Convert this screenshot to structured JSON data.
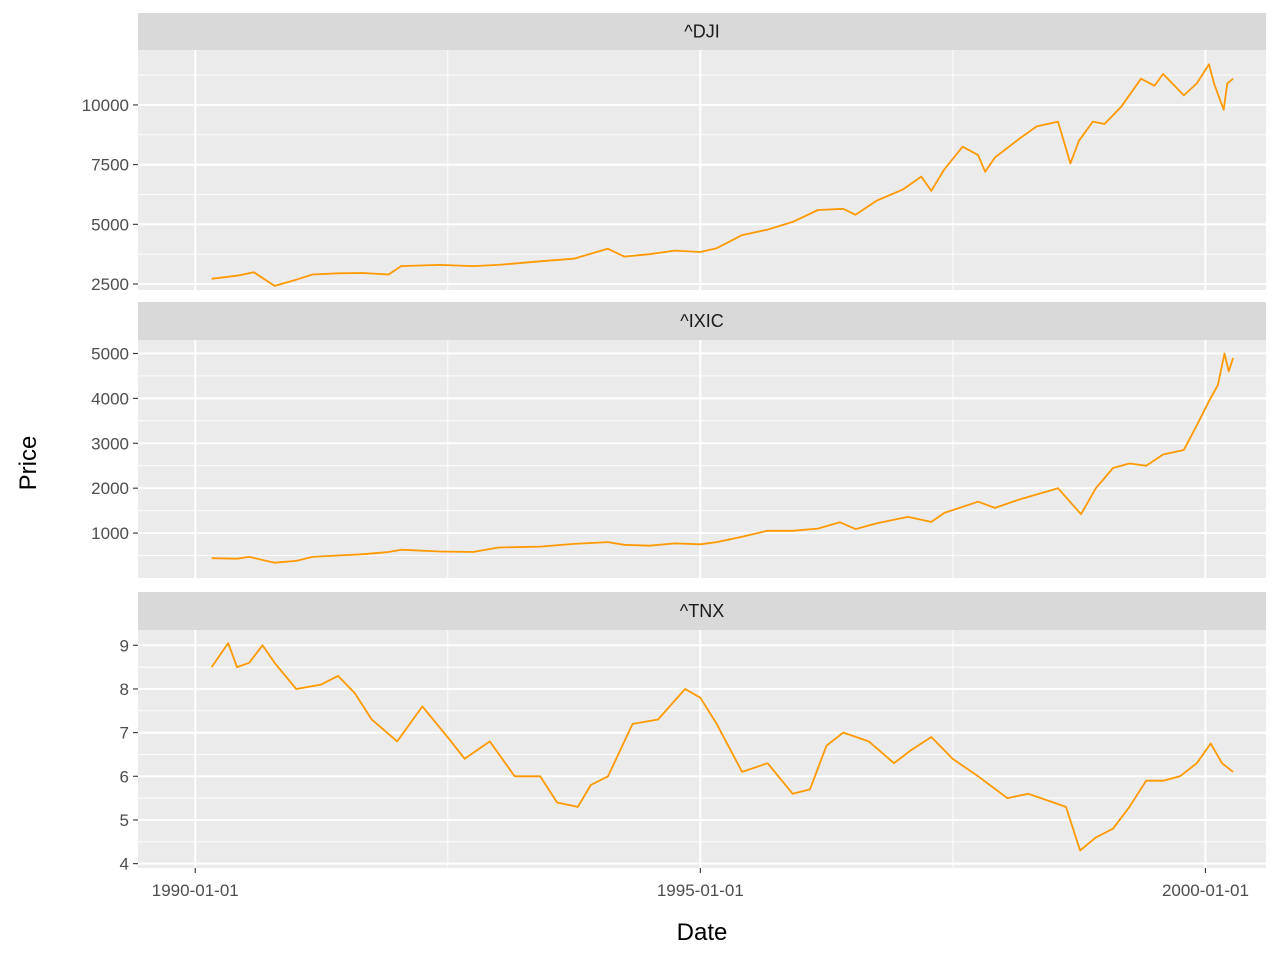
{
  "chart_data": {
    "type": "line",
    "facets": "vertical, free y scale, shared x axis",
    "xlabel": "Date",
    "ylabel": "Price",
    "x_axis": {
      "type": "date",
      "range": [
        "1989-06-08",
        "2000-08-07"
      ],
      "ticks": [
        "1990-01-01",
        "1995-01-01",
        "2000-01-01"
      ]
    },
    "grid": true,
    "line_color": "#FF9900",
    "panel_background": "#EBEBEB",
    "strip_background": "#D9D9D9",
    "panels": [
      {
        "title": "^DJI",
        "ylim": [
          2250,
          12300
        ],
        "yticks": [
          2500,
          5000,
          7500,
          10000
        ],
        "series": {
          "x": [
            "1990-03-01",
            "1990-06-01",
            "1990-08-01",
            "1990-10-15",
            "1991-01-01",
            "1991-03-01",
            "1991-06-01",
            "1991-09-01",
            "1991-12-01",
            "1992-01-15",
            "1992-06-01",
            "1992-10-01",
            "1993-01-01",
            "1993-06-01",
            "1993-10-01",
            "1994-01-31",
            "1994-04-01",
            "1994-07-01",
            "1994-10-01",
            "1995-01-01",
            "1995-03-01",
            "1995-06-01",
            "1995-09-01",
            "1995-12-01",
            "1996-03-01",
            "1996-06-01",
            "1996-07-15",
            "1996-10-01",
            "1997-01-01",
            "1997-03-10",
            "1997-04-15",
            "1997-06-01",
            "1997-08-06",
            "1997-10-01",
            "1997-10-27",
            "1997-12-01",
            "1998-03-01",
            "1998-05-01",
            "1998-07-17",
            "1998-08-31",
            "1998-10-01",
            "1998-11-20",
            "1999-01-01",
            "1999-03-01",
            "1999-05-13",
            "1999-07-01",
            "1999-08-01",
            "1999-10-15",
            "1999-12-01",
            "2000-01-14",
            "2000-02-01",
            "2000-03-07",
            "2000-03-20",
            "2000-04-10"
          ],
          "y": [
            2720,
            2850,
            2990,
            2420,
            2680,
            2900,
            2950,
            2960,
            2900,
            3250,
            3300,
            3250,
            3300,
            3450,
            3560,
            3980,
            3650,
            3750,
            3900,
            3840,
            4000,
            4550,
            4780,
            5100,
            5600,
            5650,
            5400,
            6000,
            6450,
            7000,
            6400,
            7300,
            8250,
            7900,
            7200,
            7800,
            8600,
            9100,
            9300,
            7550,
            8500,
            9300,
            9200,
            9900,
            11100,
            10800,
            11300,
            10400,
            10900,
            11700,
            10900,
            9800,
            10900,
            11100
          ]
        }
      },
      {
        "title": "^IXIC",
        "ylim": [
          0,
          5300
        ],
        "yticks": [
          1000,
          2000,
          3000,
          4000,
          5000
        ],
        "series": {
          "x": [
            "1990-03-01",
            "1990-06-01",
            "1990-07-15",
            "1990-10-15",
            "1991-01-01",
            "1991-03-01",
            "1991-06-01",
            "1991-09-01",
            "1991-12-01",
            "1992-01-15",
            "1992-06-01",
            "1992-10-01",
            "1993-01-01",
            "1993-06-01",
            "1993-10-01",
            "1994-01-31",
            "1994-04-01",
            "1994-07-01",
            "1994-10-01",
            "1995-01-01",
            "1995-03-01",
            "1995-06-01",
            "1995-09-01",
            "1995-12-01",
            "1996-03-01",
            "1996-05-20",
            "1996-07-15",
            "1996-10-01",
            "1997-01-20",
            "1997-04-15",
            "1997-06-01",
            "1997-10-01",
            "1997-12-01",
            "1998-03-01",
            "1998-07-17",
            "1998-10-08",
            "1998-12-01",
            "1999-02-01",
            "1999-04-01",
            "1999-06-01",
            "1999-08-01",
            "1999-10-15",
            "1999-12-01",
            "2000-01-15",
            "2000-02-15",
            "2000-03-10",
            "2000-03-25",
            "2000-04-10"
          ],
          "y": [
            440,
            430,
            470,
            340,
            380,
            470,
            500,
            530,
            580,
            630,
            590,
            580,
            680,
            700,
            760,
            800,
            740,
            720,
            770,
            750,
            800,
            920,
            1050,
            1050,
            1100,
            1240,
            1090,
            1220,
            1360,
            1250,
            1450,
            1700,
            1560,
            1750,
            2000,
            1420,
            2000,
            2450,
            2550,
            2500,
            2750,
            2850,
            3400,
            3950,
            4300,
            5000,
            4600,
            4900
          ]
        }
      },
      {
        "title": "^TNX",
        "ylim": [
          3.9,
          9.35
        ],
        "yticks": [
          4,
          5,
          6,
          7,
          8,
          9
        ],
        "series": {
          "x": [
            "1990-03-01",
            "1990-04-30",
            "1990-06-01",
            "1990-07-15",
            "1990-09-01",
            "1990-10-15",
            "1991-01-01",
            "1991-04-01",
            "1991-06-01",
            "1991-08-01",
            "1991-10-01",
            "1992-01-01",
            "1992-04-01",
            "1992-07-01",
            "1992-09-01",
            "1992-12-01",
            "1993-03-01",
            "1993-06-01",
            "1993-08-01",
            "1993-10-15",
            "1993-12-01",
            "1994-02-01",
            "1994-05-01",
            "1994-08-01",
            "1994-11-07",
            "1995-01-01",
            "1995-03-01",
            "1995-06-01",
            "1995-09-01",
            "1995-12-01",
            "1996-02-01",
            "1996-04-01",
            "1996-06-01",
            "1996-09-01",
            "1996-12-01",
            "1997-02-01",
            "1997-04-15",
            "1997-07-01",
            "1997-10-01",
            "1998-01-15",
            "1998-04-01",
            "1998-07-01",
            "1998-08-15",
            "1998-10-05",
            "1998-12-01",
            "1999-02-01",
            "1999-04-01",
            "1999-06-01",
            "1999-08-01",
            "1999-10-01",
            "1999-12-01",
            "2000-01-20",
            "2000-03-01",
            "2000-04-10"
          ],
          "y": [
            8.5,
            9.05,
            8.5,
            8.6,
            9.0,
            8.6,
            8.0,
            8.1,
            8.3,
            7.9,
            7.3,
            6.8,
            7.6,
            6.9,
            6.4,
            6.8,
            6.0,
            6.0,
            5.4,
            5.3,
            5.8,
            6.0,
            7.2,
            7.3,
            8.0,
            7.8,
            7.2,
            6.1,
            6.3,
            5.6,
            5.7,
            6.7,
            7.0,
            6.8,
            6.3,
            6.6,
            6.9,
            6.4,
            6.0,
            5.5,
            5.6,
            5.4,
            5.3,
            4.3,
            4.6,
            4.8,
            5.3,
            5.9,
            5.9,
            6.0,
            6.3,
            6.75,
            6.3,
            6.1
          ]
        }
      }
    ]
  }
}
